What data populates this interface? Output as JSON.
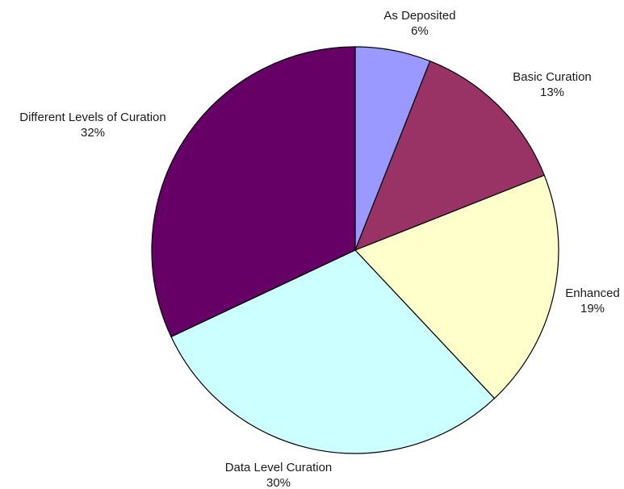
{
  "chart_data": {
    "type": "pie",
    "start_angle_deg": 0,
    "direction": "clockwise",
    "slices": [
      {
        "label": "As Deposited",
        "value": 6,
        "value_label": "6%",
        "color": "#9999ff"
      },
      {
        "label": "Basic Curation",
        "value": 13,
        "value_label": "13%",
        "color": "#993366"
      },
      {
        "label": "Enhanced",
        "value": 19,
        "value_label": "19%",
        "color": "#ffffcc"
      },
      {
        "label": "Data Level Curation",
        "value": 30,
        "value_label": "30%",
        "color": "#ccffff"
      },
      {
        "label": "Different Levels of Curation",
        "value": 32,
        "value_label": "32%",
        "color": "#660066"
      }
    ]
  }
}
